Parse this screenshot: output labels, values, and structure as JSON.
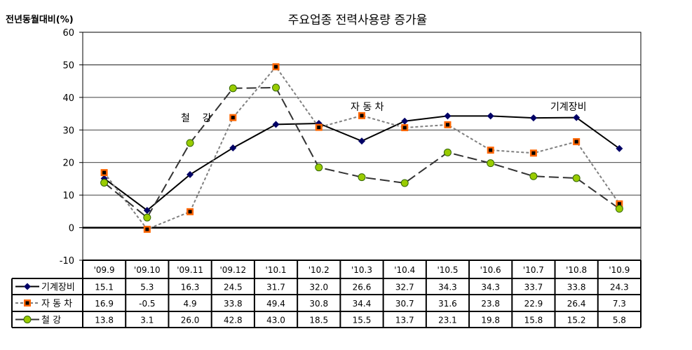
{
  "chart_data": {
    "type": "line",
    "title": "주요업종 전력사용량 증가율",
    "ylabel": "전년동월대비(%)",
    "xlabel": "",
    "ylim": [
      -10,
      60
    ],
    "yticks": [
      -10,
      0,
      10,
      20,
      30,
      40,
      50,
      60
    ],
    "grid": true,
    "legend": "data-table-bottom",
    "categories": [
      "'09.9",
      "'09.10",
      "'09.11",
      "'09.12",
      "'10.1",
      "'10.2",
      "'10.3",
      "'10.4",
      "'10.5",
      "'10.6",
      "'10.7",
      "'10.8",
      "'10.9"
    ],
    "series": [
      {
        "name": "기계장비",
        "label": "기계장비",
        "color": "#000000",
        "marker_color": "#000066",
        "marker": "diamond",
        "line": "solid",
        "values": [
          15.1,
          5.3,
          16.3,
          24.5,
          31.7,
          32.0,
          26.6,
          32.7,
          34.3,
          34.3,
          33.7,
          33.8,
          24.3
        ]
      },
      {
        "name": "자 동 차",
        "label": "자 동 차",
        "color": "#808080",
        "marker_color": "#ff6600",
        "marker": "square",
        "line": "dotted",
        "values": [
          16.9,
          -0.5,
          4.9,
          33.8,
          49.4,
          30.8,
          34.4,
          30.7,
          31.6,
          23.8,
          22.9,
          26.4,
          7.3
        ]
      },
      {
        "name": "철    강",
        "label": "철    강",
        "color": "#333333",
        "marker_color": "#99cc00",
        "marker": "circle",
        "line": "dashed",
        "values": [
          13.8,
          3.1,
          26.0,
          42.8,
          43.0,
          18.5,
          15.5,
          13.7,
          23.1,
          19.8,
          15.8,
          15.2,
          5.8
        ]
      }
    ],
    "annotations": [
      "철    강",
      "자 동 차",
      "기계장비"
    ]
  }
}
